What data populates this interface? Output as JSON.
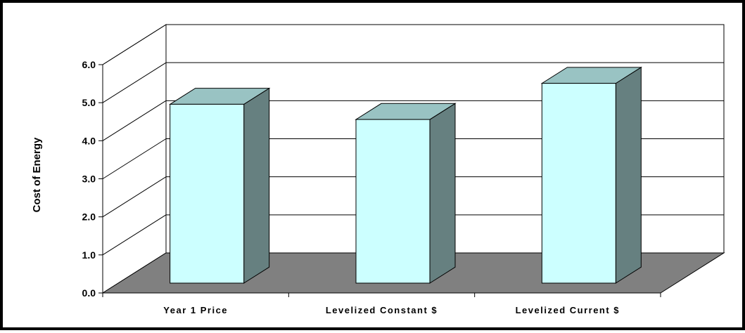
{
  "chart_data": {
    "type": "bar",
    "categories": [
      "Year 1 Price",
      "Levelized Constant $",
      "Levelized Current $"
    ],
    "values": [
      4.7,
      4.3,
      5.25
    ],
    "title": "",
    "xlabel": "",
    "ylabel": "Cost of Energy",
    "ylim": [
      0,
      6
    ],
    "yticks": [
      "0.0",
      "1.0",
      "2.0",
      "3.0",
      "4.0",
      "5.0",
      "6.0"
    ],
    "grid": true,
    "legend": "none",
    "three_d": true,
    "colors": {
      "bar_front": "#CCFFFF",
      "bar_top": "#99C3C3",
      "bar_side": "#668080",
      "floor": "#808080",
      "grid": "#000000",
      "frame": "#000000"
    }
  }
}
